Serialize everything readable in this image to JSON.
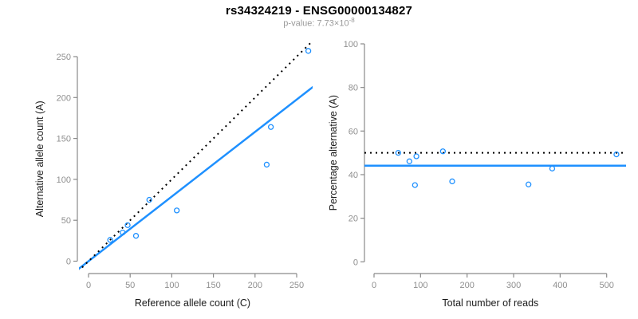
{
  "header": {
    "title": "rs34324219 - ENSG00000134827",
    "pvalue_text": "p-value: 7.73×10",
    "pvalue_exponent": "-8"
  },
  "colors": {
    "point_blue": "#1E90FF",
    "fit_line_blue": "#1E90FF",
    "dotted_black": "#000000",
    "axis_gray": "#8a8a8a",
    "tick_text_gray": "#8f8f8f",
    "axis_title_dark": "#1a1a1a",
    "subtitle_gray": "#9a9a9a"
  },
  "chart_data": [
    {
      "id": "allele-count-scatter",
      "type": "scatter",
      "xlabel": "Reference allele count (C)",
      "ylabel": "Alternative allele count (A)",
      "xlim": [
        0,
        250
      ],
      "ylim": [
        0,
        250
      ],
      "xticks": [
        0,
        50,
        100,
        150,
        200,
        250
      ],
      "yticks": [
        0,
        50,
        100,
        150,
        200,
        250
      ],
      "grid": false,
      "legend_position": "none",
      "points": [
        [
          26,
          26
        ],
        [
          41,
          35
        ],
        [
          47,
          44
        ],
        [
          57,
          31
        ],
        [
          73,
          75
        ],
        [
          106,
          62
        ],
        [
          214,
          118
        ],
        [
          219,
          164
        ],
        [
          264,
          257
        ]
      ],
      "lines": [
        {
          "name": "fit-line",
          "style": "solid",
          "slope": 0.79,
          "intercept": 0
        },
        {
          "name": "identity-line",
          "style": "dotted",
          "slope": 1,
          "intercept": 0
        }
      ]
    },
    {
      "id": "percentage-reads-scatter",
      "type": "scatter",
      "xlabel": "Total number of reads",
      "ylabel": "Percentage alternative (A)",
      "xlim": [
        0,
        500
      ],
      "ylim": [
        0,
        100
      ],
      "xticks": [
        0,
        100,
        200,
        300,
        400,
        500
      ],
      "yticks": [
        0,
        20,
        40,
        60,
        80,
        100
      ],
      "grid": false,
      "legend_position": "none",
      "points": [
        [
          52,
          50.0
        ],
        [
          76,
          46.1
        ],
        [
          91,
          48.4
        ],
        [
          88,
          35.2
        ],
        [
          148,
          50.7
        ],
        [
          168,
          36.9
        ],
        [
          332,
          35.5
        ],
        [
          383,
          42.8
        ],
        [
          521,
          49.3
        ]
      ],
      "lines": [
        {
          "name": "mean-percentage-line",
          "style": "solid",
          "value": 44.1
        },
        {
          "name": "expected-percentage-line",
          "style": "dotted",
          "value": 50
        }
      ]
    }
  ]
}
